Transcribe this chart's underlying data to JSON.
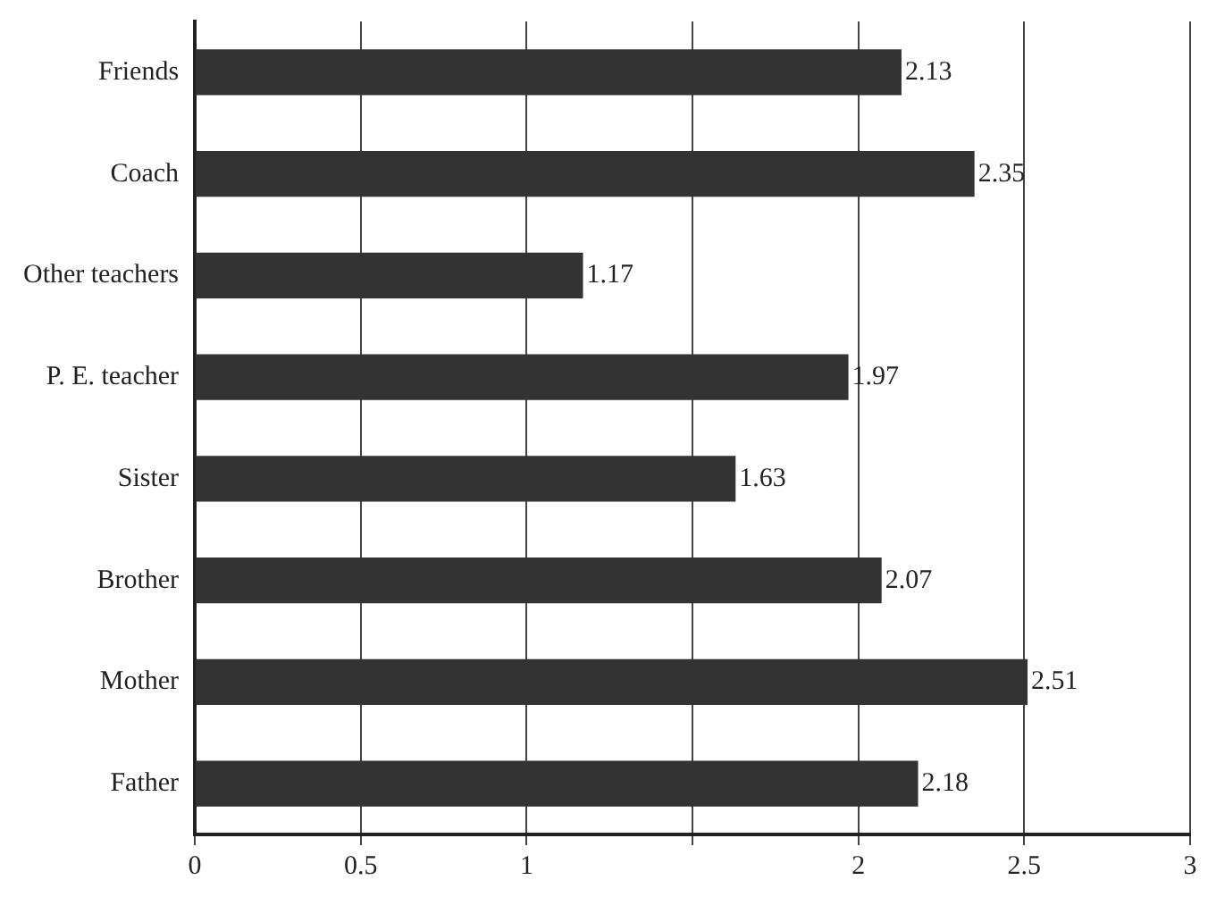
{
  "chart_data": {
    "type": "bar",
    "orientation": "horizontal",
    "categories": [
      "Friends",
      "Coach",
      "Other teachers",
      "P. E. teacher",
      "Sister",
      "Brother",
      "Mother",
      "Father"
    ],
    "values": [
      2.13,
      2.35,
      1.17,
      1.97,
      1.63,
      2.07,
      2.51,
      2.18
    ],
    "color": "#333333",
    "xlim": [
      0,
      3
    ],
    "xticks": [
      0,
      0.5,
      1,
      {
        "value": 1.5,
        "label": null
      },
      2,
      2.5,
      3
    ],
    "grid": "x",
    "data_labels": true,
    "legend": false
  }
}
